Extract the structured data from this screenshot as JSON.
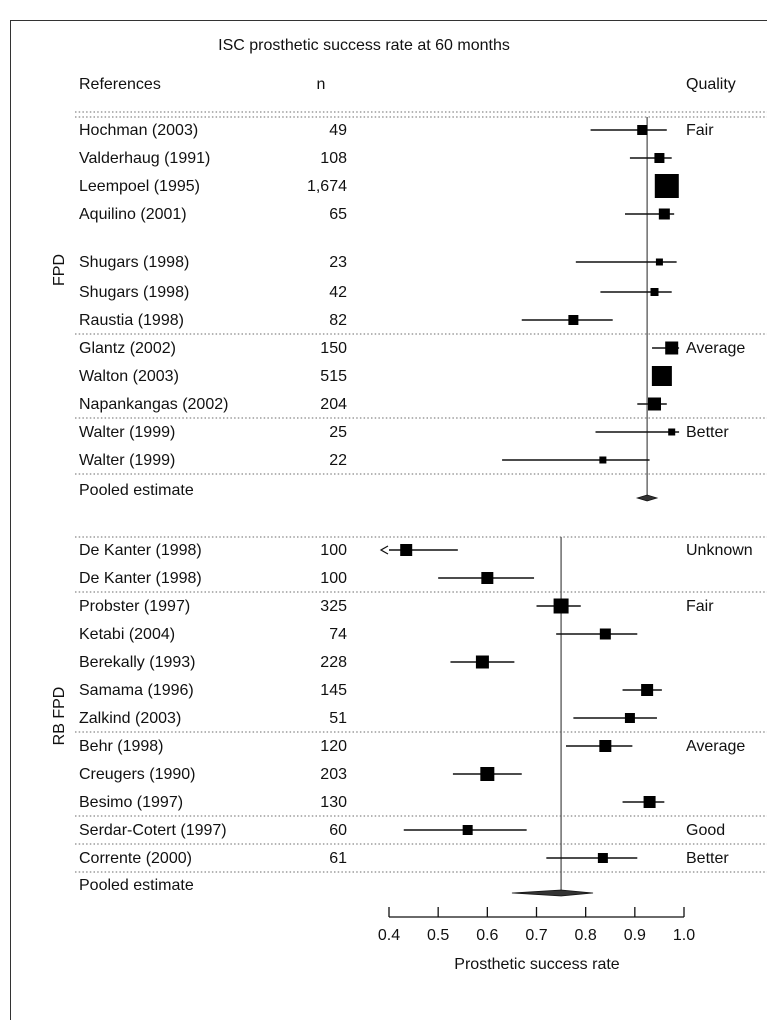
{
  "chart_data": {
    "type": "forest",
    "title": "ISC prosthetic success rate at 60 months",
    "columns": {
      "references": "References",
      "n": "n",
      "quality": "Quality"
    },
    "xlabel": "Prosthetic success rate",
    "xlim": [
      0.4,
      1.0
    ],
    "xticks": [
      "0.4",
      "0.5",
      "0.6",
      "0.7",
      "0.8",
      "0.9",
      "1.0"
    ],
    "groups": [
      {
        "label": "FPD",
        "reference_line": 0.925,
        "studies": [
          {
            "ref": "Hochman (2003)",
            "n": "49",
            "est": 0.915,
            "lo": 0.81,
            "hi": 0.965,
            "w": 1.0,
            "quality": "Fair"
          },
          {
            "ref": "Valderhaug (1991)",
            "n": "108",
            "est": 0.95,
            "lo": 0.89,
            "hi": 0.975,
            "w": 1.0,
            "quality": ""
          },
          {
            "ref": "Leempoel (1995)",
            "n": "1,674",
            "est": 0.965,
            "lo": 0.945,
            "hi": 0.985,
            "w": 2.4,
            "quality": ""
          },
          {
            "ref": "Aquilino (2001)",
            "n": "65",
            "est": 0.96,
            "lo": 0.88,
            "hi": 0.98,
            "w": 1.1,
            "quality": ""
          },
          {
            "ref": "Shugars (1998)",
            "n": "23",
            "est": 0.95,
            "lo": 0.78,
            "hi": 0.985,
            "w": 0.7,
            "quality": ""
          },
          {
            "ref": "Shugars (1998)",
            "n": "42",
            "est": 0.94,
            "lo": 0.83,
            "hi": 0.975,
            "w": 0.8,
            "quality": ""
          },
          {
            "ref": "Raustia (1998)",
            "n": "82",
            "est": 0.775,
            "lo": 0.67,
            "hi": 0.855,
            "w": 1.0,
            "quality": ""
          },
          {
            "ref": "Glantz (2002)",
            "n": "150",
            "est": 0.975,
            "lo": 0.935,
            "hi": 0.99,
            "w": 1.3,
            "quality": "Average"
          },
          {
            "ref": "Walton (2003)",
            "n": "515",
            "est": 0.955,
            "lo": 0.935,
            "hi": 0.97,
            "w": 2.0,
            "quality": ""
          },
          {
            "ref": "Napankangas (2002)",
            "n": "204",
            "est": 0.94,
            "lo": 0.905,
            "hi": 0.965,
            "w": 1.3,
            "quality": ""
          },
          {
            "ref": "Walter (1999)",
            "n": "25",
            "est": 0.975,
            "lo": 0.82,
            "hi": 0.99,
            "w": 0.7,
            "quality": "Better"
          },
          {
            "ref": "Walter (1999)",
            "n": "22",
            "est": 0.835,
            "lo": 0.63,
            "hi": 0.93,
            "w": 0.7,
            "quality": ""
          }
        ],
        "pooled": {
          "label": "Pooled estimate",
          "est": 0.925,
          "lo": 0.905,
          "hi": 0.945
        }
      },
      {
        "label": "RB FPD",
        "reference_line": 0.75,
        "studies": [
          {
            "ref": "De Kanter (1998)",
            "n": "100",
            "est": 0.435,
            "lo": 0.4,
            "hi": 0.54,
            "w": 1.2,
            "quality": "Unknown",
            "arrow_left": true
          },
          {
            "ref": "De Kanter (1998)",
            "n": "100",
            "est": 0.6,
            "lo": 0.5,
            "hi": 0.695,
            "w": 1.2,
            "quality": ""
          },
          {
            "ref": "Probster (1997)",
            "n": "325",
            "est": 0.75,
            "lo": 0.7,
            "hi": 0.79,
            "w": 1.5,
            "quality": "Fair"
          },
          {
            "ref": "Ketabi (2004)",
            "n": "74",
            "est": 0.84,
            "lo": 0.74,
            "hi": 0.905,
            "w": 1.1,
            "quality": ""
          },
          {
            "ref": "Berekally (1993)",
            "n": "228",
            "est": 0.59,
            "lo": 0.525,
            "hi": 0.655,
            "w": 1.3,
            "quality": ""
          },
          {
            "ref": "Samama (1996)",
            "n": "145",
            "est": 0.925,
            "lo": 0.875,
            "hi": 0.955,
            "w": 1.2,
            "quality": ""
          },
          {
            "ref": "Zalkind (2003)",
            "n": "51",
            "est": 0.89,
            "lo": 0.775,
            "hi": 0.945,
            "w": 1.0,
            "quality": ""
          },
          {
            "ref": "Behr (1998)",
            "n": "120",
            "est": 0.84,
            "lo": 0.76,
            "hi": 0.895,
            "w": 1.2,
            "quality": "Average"
          },
          {
            "ref": "Creugers (1990)",
            "n": "203",
            "est": 0.6,
            "lo": 0.53,
            "hi": 0.67,
            "w": 1.4,
            "quality": ""
          },
          {
            "ref": "Besimo (1997)",
            "n": "130",
            "est": 0.93,
            "lo": 0.875,
            "hi": 0.96,
            "w": 1.2,
            "quality": ""
          },
          {
            "ref": "Serdar-Cotert (1997)",
            "n": "60",
            "est": 0.56,
            "lo": 0.43,
            "hi": 0.68,
            "w": 1.0,
            "quality": "Good"
          },
          {
            "ref": "Corrente (2000)",
            "n": "61",
            "est": 0.835,
            "lo": 0.72,
            "hi": 0.905,
            "w": 1.0,
            "quality": "Better"
          }
        ],
        "pooled": {
          "label": "Pooled estimate",
          "est": 0.75,
          "lo": 0.65,
          "hi": 0.815
        }
      }
    ]
  }
}
